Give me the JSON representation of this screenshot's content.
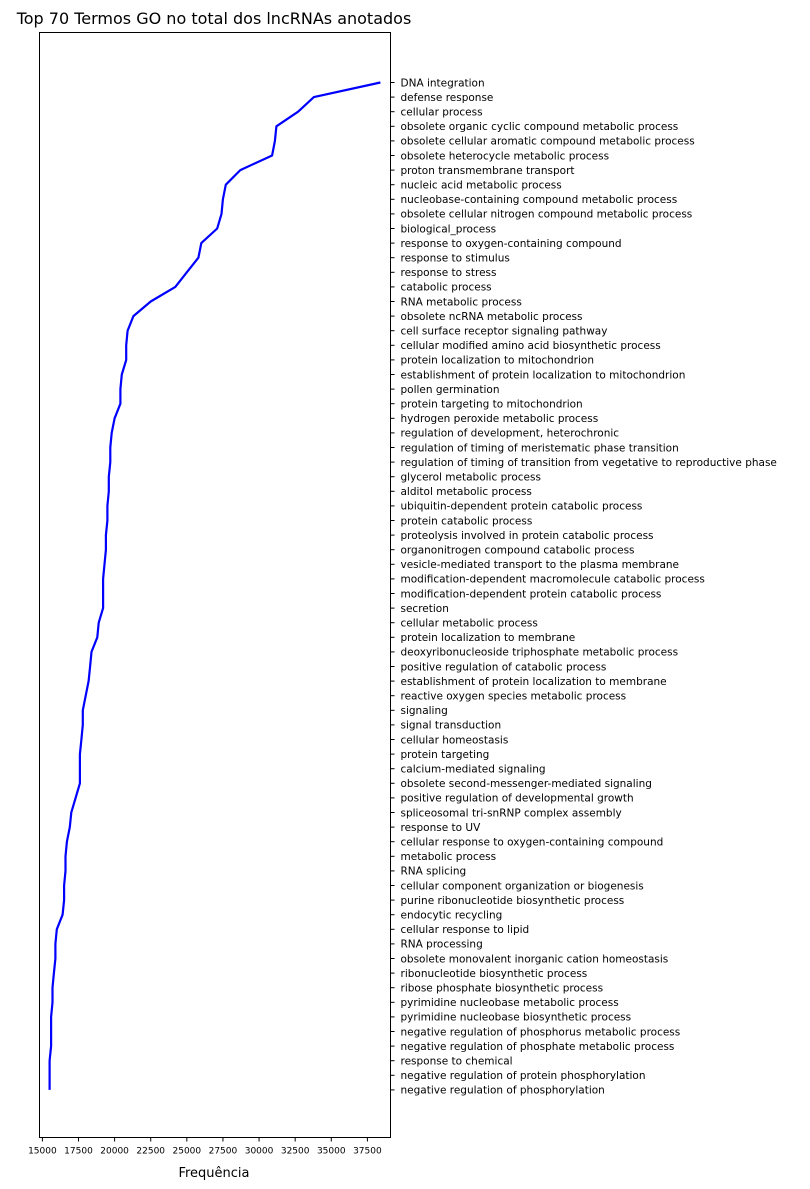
{
  "chart_data": {
    "type": "line",
    "title": "Top 70 Termos GO no total dos lncRNAs anotados",
    "xlabel": "Frequência",
    "ylabel": "",
    "xlim": [
      14800,
      39100
    ],
    "x_ticks": [
      15000,
      17500,
      20000,
      22500,
      25000,
      27500,
      30000,
      32500,
      35000,
      37500
    ],
    "y_axis_side": "right",
    "grid": false,
    "legend": "none",
    "line_color": "#0000ff",
    "series": [
      {
        "categories": [
          "DNA integration",
          "defense response",
          "cellular process",
          "obsolete organic cyclic compound metabolic process",
          "obsolete cellular aromatic compound metabolic process",
          "obsolete heterocycle metabolic process",
          "proton transmembrane transport",
          "nucleic acid metabolic process",
          "nucleobase-containing compound metabolic process",
          "obsolete cellular nitrogen compound metabolic process",
          "biological_process",
          "response to oxygen-containing compound",
          "response to stimulus",
          "response to stress",
          "catabolic process",
          "RNA metabolic process",
          "obsolete ncRNA metabolic process",
          "cell surface receptor signaling pathway",
          "cellular modified amino acid biosynthetic process",
          "protein localization to mitochondrion",
          "establishment of protein localization to mitochondrion",
          "pollen germination",
          "protein targeting to mitochondrion",
          "hydrogen peroxide metabolic process",
          "regulation of development, heterochronic",
          "regulation of timing of meristematic phase transition",
          "regulation of timing of transition from vegetative to reproductive phase",
          "glycerol metabolic process",
          "alditol metabolic process",
          "ubiquitin-dependent protein catabolic process",
          "protein catabolic process",
          "proteolysis involved in protein catabolic process",
          "organonitrogen compound catabolic process",
          "vesicle-mediated transport to the plasma membrane",
          "modification-dependent macromolecule catabolic process",
          "modification-dependent protein catabolic process",
          "secretion",
          "cellular metabolic process",
          "protein localization to membrane",
          "deoxyribonucleoside triphosphate metabolic process",
          "positive regulation of catabolic process",
          "establishment of protein localization to membrane",
          "reactive oxygen species metabolic process",
          "signaling",
          "signal transduction",
          "cellular homeostasis",
          "protein targeting",
          "calcium-mediated signaling",
          "obsolete second-messenger-mediated signaling",
          "positive regulation of developmental growth",
          "spliceosomal tri-snRNP complex assembly",
          "response to UV",
          "cellular response to oxygen-containing compound",
          "metabolic process",
          "RNA splicing",
          "cellular component organization or biogenesis",
          "purine ribonucleotide biosynthetic process",
          "endocytic recycling",
          "cellular response to lipid",
          "RNA processing",
          "obsolete monovalent inorganic cation homeostasis",
          "ribonucleotide biosynthetic process",
          "ribose phosphate biosynthetic process",
          "pyrimidine nucleobase metabolic process",
          "pyrimidine nucleobase biosynthetic process",
          "negative regulation of phosphorus metabolic process",
          "negative regulation of phosphate metabolic process",
          "response to chemical",
          "negative regulation of protein phosphorylation",
          "negative regulation of phosphorylation"
        ],
        "values": [
          38400,
          33800,
          32700,
          31200,
          31100,
          30900,
          28700,
          27700,
          27500,
          27400,
          27100,
          26000,
          25800,
          25000,
          24200,
          22500,
          21300,
          20900,
          20800,
          20800,
          20500,
          20400,
          20400,
          20000,
          19800,
          19700,
          19700,
          19600,
          19600,
          19500,
          19500,
          19400,
          19400,
          19300,
          19200,
          19200,
          19200,
          18900,
          18800,
          18400,
          18300,
          18200,
          18000,
          17800,
          17800,
          17700,
          17600,
          17600,
          17600,
          17300,
          17000,
          16900,
          16700,
          16600,
          16600,
          16500,
          16500,
          16400,
          16000,
          15900,
          15900,
          15800,
          15700,
          15700,
          15600,
          15600,
          15600,
          15500,
          15500,
          15500
        ]
      }
    ]
  }
}
